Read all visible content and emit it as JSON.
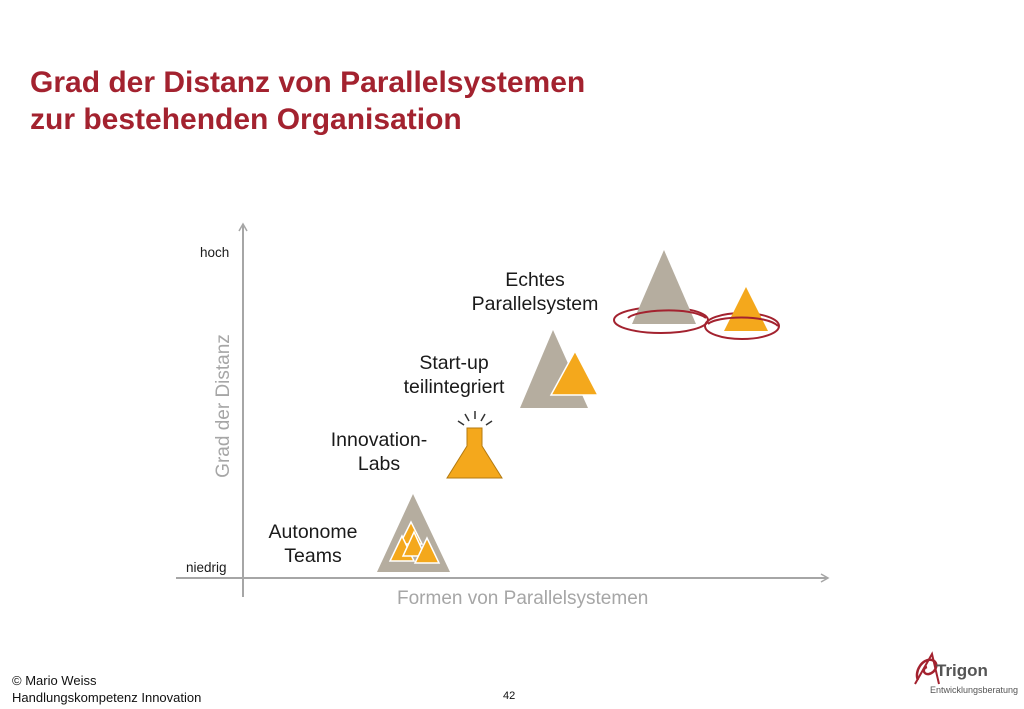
{
  "title": {
    "line1": "Grad der Distanz von Parallelsystemen",
    "line2": "zur bestehenden Organisation"
  },
  "axes": {
    "y_title": "Grad der Distanz",
    "y_high": "hoch",
    "y_low": "niedrig",
    "x_title": "Formen von Parallelsystemen"
  },
  "items": [
    {
      "line1": "Autonome",
      "line2": "Teams",
      "icon": "mountain-with-small-triangles-icon"
    },
    {
      "line1": "Innovation-",
      "line2": "Labs",
      "icon": "flask-icon"
    },
    {
      "line1": "Start-up",
      "line2": "teilintegriert",
      "icon": "overlapping-triangles-icon"
    },
    {
      "line1": "Echtes",
      "line2": "Parallelsystem",
      "icon": "separated-circled-triangles-icon"
    }
  ],
  "colors": {
    "title": "#a3222f",
    "gray_triangle": "#b5ad9f",
    "orange_triangle": "#f4a81c",
    "ring": "#a3222f",
    "axis": "#a6a6a6"
  },
  "footer": {
    "copyright": "© Mario Weiss",
    "subtitle": "Handlungskompetenz Innovation",
    "page": "42"
  },
  "logo": {
    "name": "Trigon",
    "tagline": "Entwicklungsberatung"
  }
}
